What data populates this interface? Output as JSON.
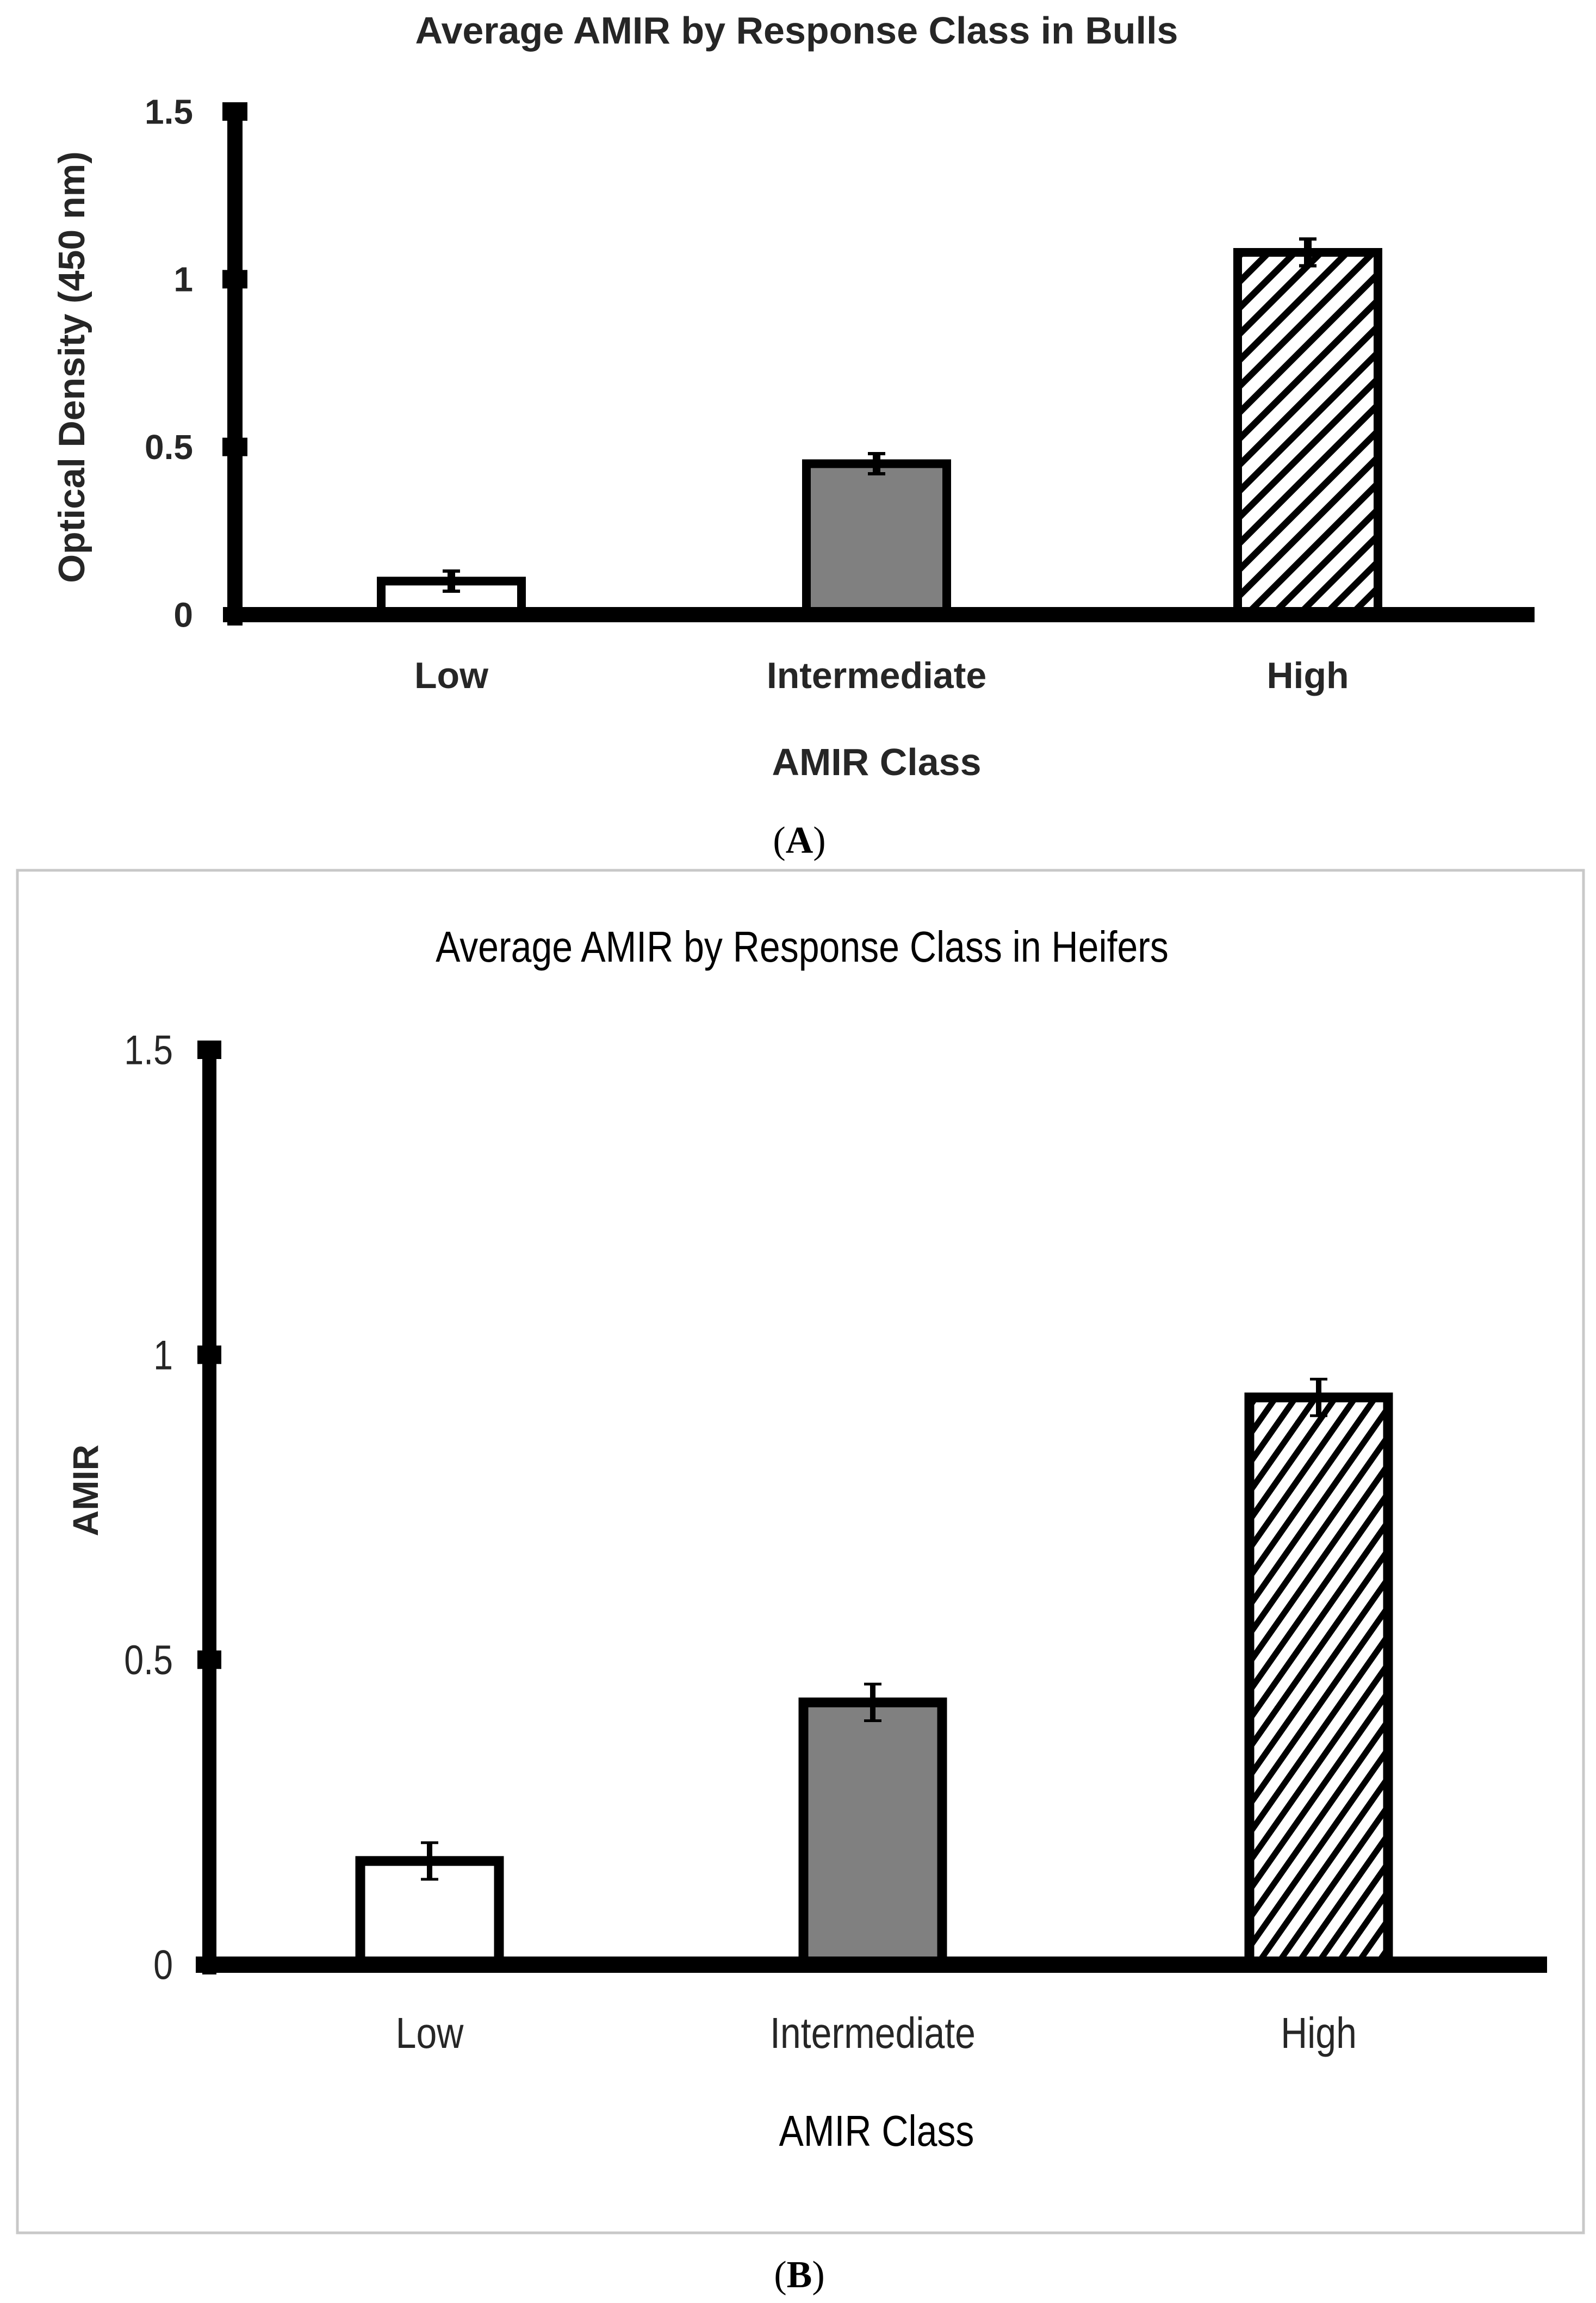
{
  "colors": {
    "axis": "#000000",
    "text": "#262626",
    "low_fill": "#ffffff",
    "intermediate_fill": "#808080",
    "high_fill": "#ffffff",
    "hatch": "#000000",
    "frame": "#c8c8c8"
  },
  "chart_data": [
    {
      "panel": "A",
      "type": "bar",
      "title": "Average AMIR by Response Class in Bulls",
      "xlabel": "AMIR Class",
      "ylabel": "Optical Density (450 nm)",
      "categories": [
        "Low",
        "Intermediate",
        "High"
      ],
      "values": [
        0.1,
        0.45,
        1.08
      ],
      "errors": [
        0.03,
        0.03,
        0.04
      ],
      "fills": [
        "white",
        "gray",
        "diagonal-hatch"
      ],
      "ylim": [
        0,
        1.5
      ],
      "yticks": [
        0,
        0.5,
        1,
        1.5
      ],
      "ytick_labels": [
        "0",
        "0.5",
        "1",
        "1.5"
      ],
      "grid": false,
      "legend": "none"
    },
    {
      "panel": "B",
      "type": "bar",
      "title": "Average AMIR by Response Class in Heifers",
      "xlabel": "AMIR Class",
      "ylabel": "AMIR",
      "categories": [
        "Low",
        "Intermediate",
        "High"
      ],
      "values": [
        0.17,
        0.43,
        0.93
      ],
      "errors": [
        0.03,
        0.03,
        0.03
      ],
      "fills": [
        "white",
        "gray",
        "diagonal-hatch"
      ],
      "ylim": [
        0,
        1.5
      ],
      "yticks": [
        0,
        0.5,
        1,
        1.5
      ],
      "ytick_labels": [
        "0",
        "0.5",
        "1",
        "1.5"
      ],
      "grid": false,
      "legend": "none"
    }
  ]
}
